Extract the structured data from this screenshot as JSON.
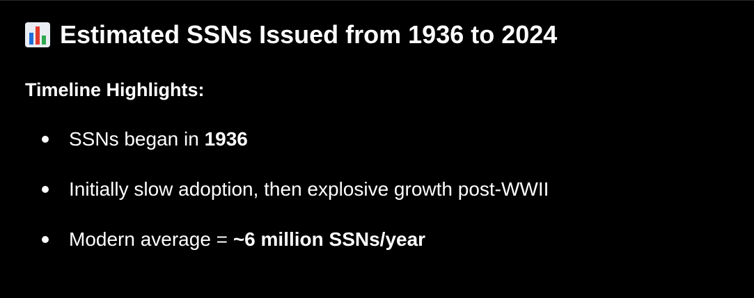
{
  "header": {
    "icon": "bar-chart-icon",
    "title": "Estimated SSNs Issued from 1936 to 2024"
  },
  "section": {
    "title": "Timeline Highlights:"
  },
  "bullets": [
    {
      "text": "SSNs began in ",
      "bold": "1936"
    },
    {
      "text": "Initially slow adoption, then explosive growth post-WWII"
    },
    {
      "text": "Modern average = ",
      "bold": "~6 million SSNs/year"
    }
  ],
  "colors": {
    "background": "#000000",
    "text": "#ffffff",
    "icon_bar_blue": "#1f6fd8",
    "icon_bar_red": "#e23b2e",
    "icon_bar_green": "#2fa84f"
  }
}
